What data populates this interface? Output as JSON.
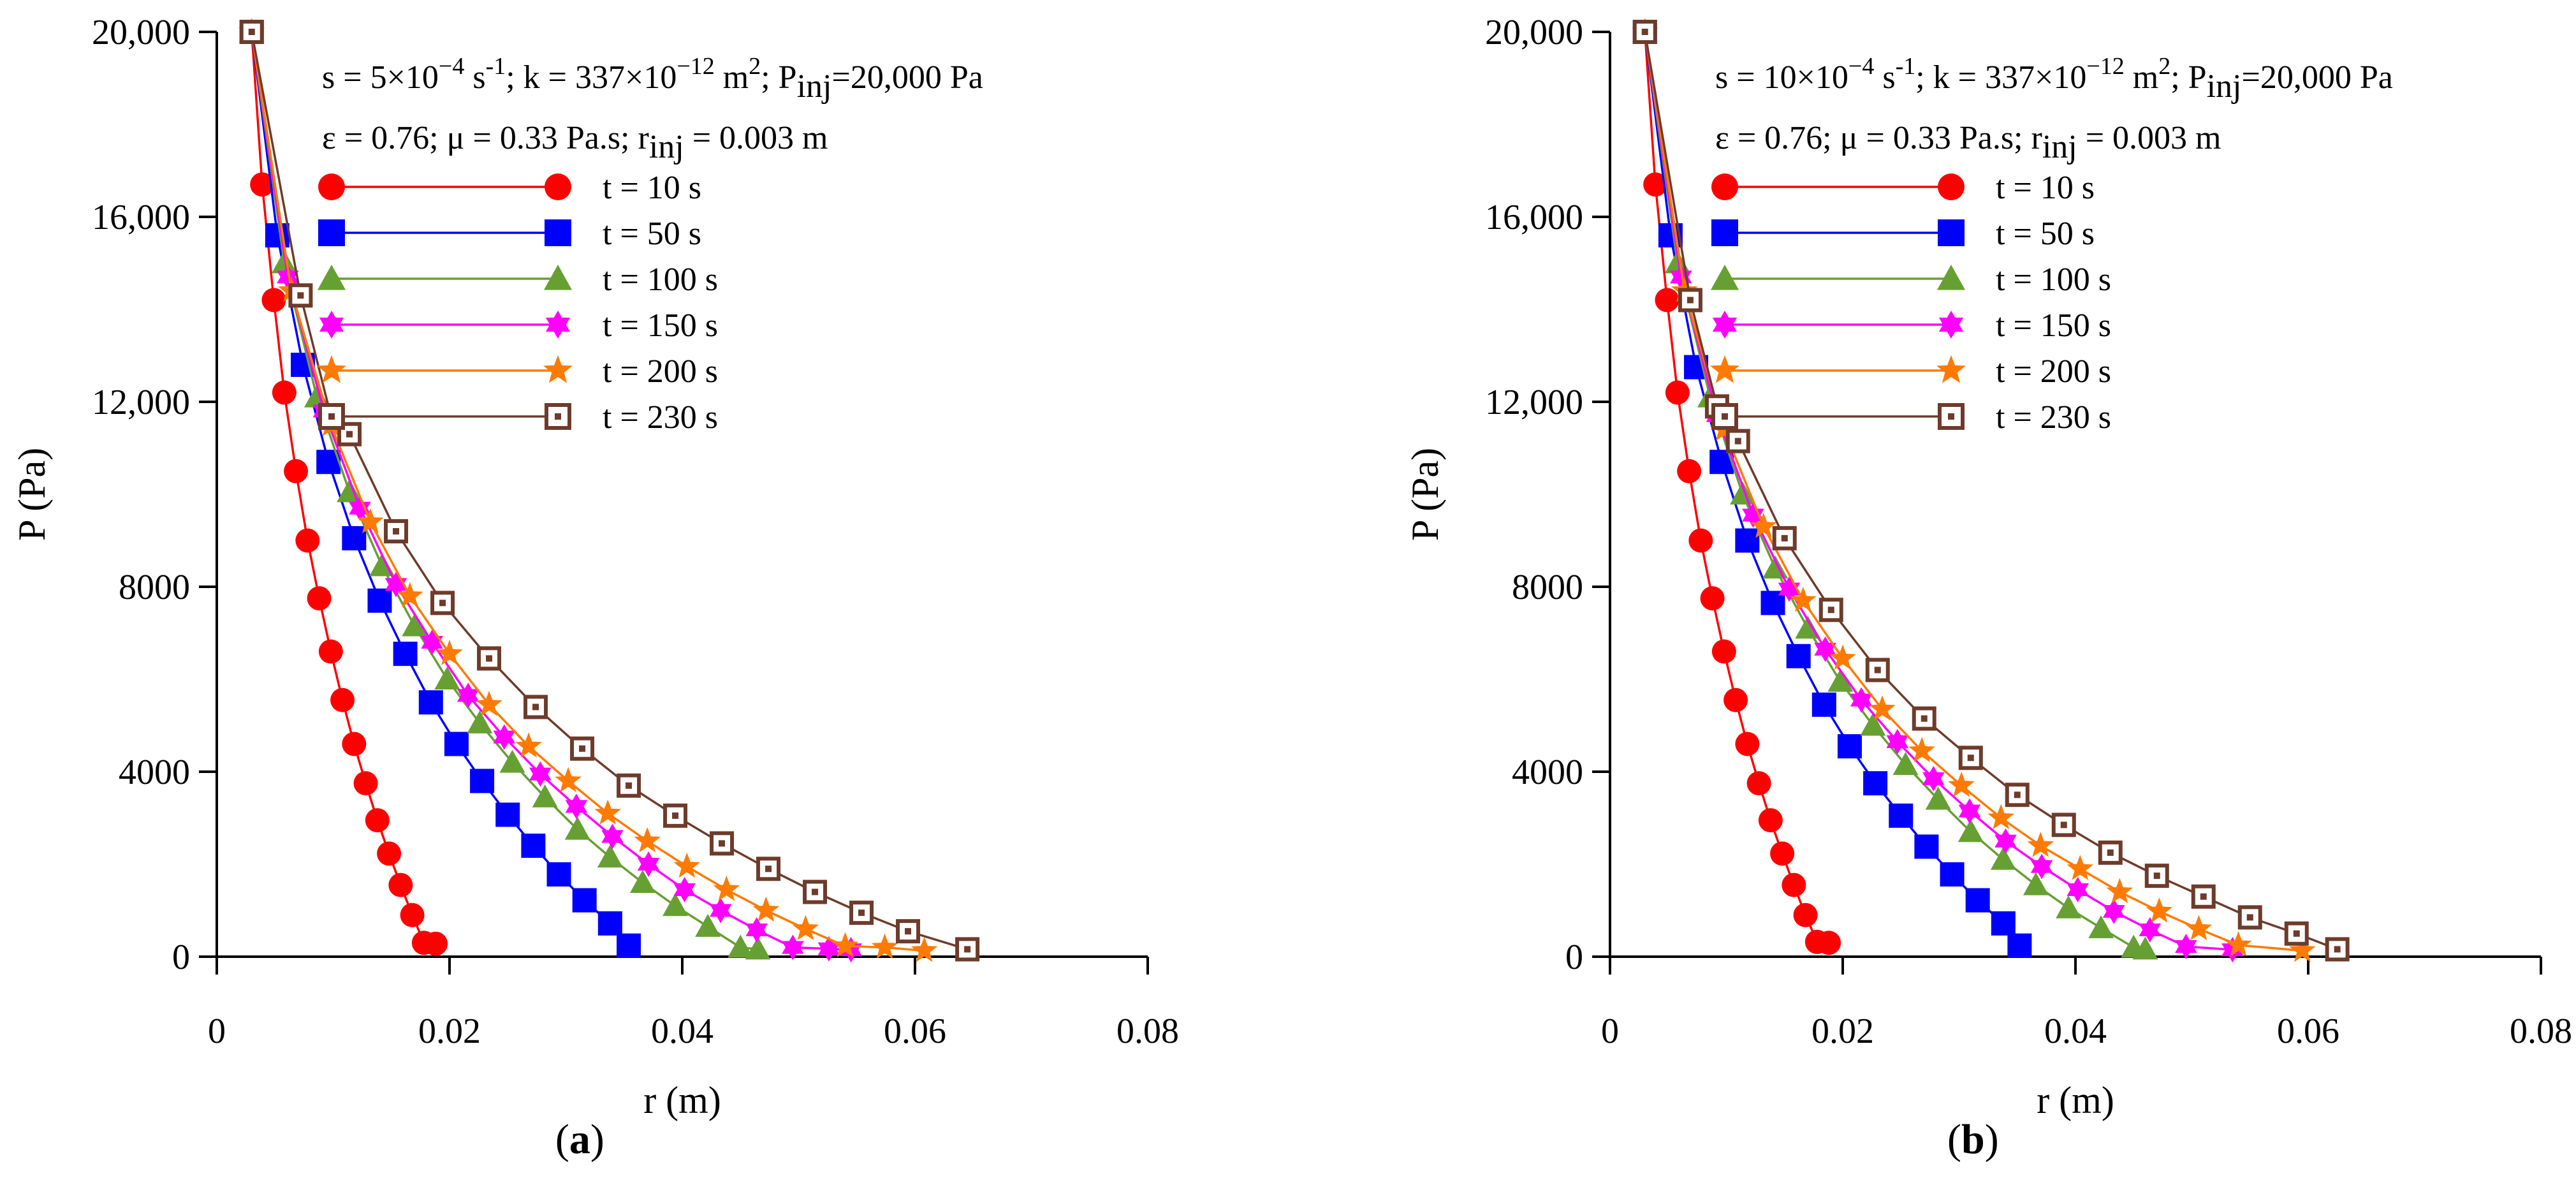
{
  "chart_data": [
    {
      "type": "line",
      "panel_label": "a",
      "xlabel": "r (m)",
      "ylabel": "P (Pa)",
      "xlim": [
        0,
        0.08
      ],
      "ylim": [
        0,
        20000
      ],
      "xticks": [
        0,
        0.02,
        0.04,
        0.06,
        0.08
      ],
      "xtick_labels": [
        "0",
        "0.02",
        "0.04",
        "0.06",
        "0.08"
      ],
      "yticks": [
        0,
        4000,
        8000,
        12000,
        16000,
        20000
      ],
      "ytick_labels": [
        "0",
        "4000",
        "8000",
        "12,000",
        "16,000",
        "20,000"
      ],
      "annotation_line1": {
        "s_label": "s = 5×10",
        "s_exp": "−4",
        "s_unit": " s",
        "s_unit_exp": "-1",
        "k_label": "; k = 337×10",
        "k_exp": "−12",
        "k_unit": " m",
        "k_unit_exp": "2",
        "p_label": "; P",
        "p_sub": "inj",
        "p_value": "=20,000 Pa"
      },
      "annotation_line2": {
        "text": "ε = 0.76; μ = 0.33 Pa.s; r",
        "sub": "inj",
        "value": " = 0.003 m"
      },
      "series": [
        {
          "name": "t = 10 s",
          "color": "#ff0000",
          "marker": "circle",
          "x": [
            0.003,
            0.0039,
            0.0049,
            0.0058,
            0.0068,
            0.0078,
            0.0088,
            0.0098,
            0.0108,
            0.0118,
            0.0128,
            0.0138,
            0.0148,
            0.0158,
            0.0168,
            0.0178,
            0.0188
          ],
          "y": [
            20000,
            16700,
            14200,
            12200,
            10500,
            9000,
            7750,
            6600,
            5550,
            4600,
            3750,
            2950,
            2230,
            1550,
            900,
            300,
            280
          ]
        },
        {
          "name": "t = 50 s",
          "color": "#0000ff",
          "marker": "square",
          "x": [
            0.003,
            0.0052,
            0.0074,
            0.0096,
            0.0118,
            0.014,
            0.0162,
            0.0184,
            0.0206,
            0.0228,
            0.025,
            0.0272,
            0.0294,
            0.0316,
            0.0338,
            0.0354
          ],
          "y": [
            20000,
            15600,
            12800,
            10700,
            9050,
            7700,
            6550,
            5500,
            4600,
            3800,
            3070,
            2400,
            1780,
            1220,
            720,
            240
          ]
        },
        {
          "name": "t = 100 s",
          "color": "#66a033",
          "marker": "triangle",
          "x": [
            0.003,
            0.0058,
            0.0086,
            0.0114,
            0.0142,
            0.017,
            0.0198,
            0.0226,
            0.0254,
            0.0282,
            0.031,
            0.0338,
            0.0366,
            0.0394,
            0.0422,
            0.045,
            0.0465
          ],
          "y": [
            20000,
            15000,
            12100,
            10050,
            8450,
            7150,
            6000,
            5050,
            4200,
            3450,
            2750,
            2150,
            1600,
            1100,
            650,
            200,
            160
          ]
        },
        {
          "name": "t = 150 s",
          "color": "#ff00ff",
          "marker": "star6",
          "x": [
            0.003,
            0.0061,
            0.0092,
            0.0123,
            0.0154,
            0.0185,
            0.0216,
            0.0247,
            0.0278,
            0.0309,
            0.034,
            0.0371,
            0.0402,
            0.0433,
            0.0464,
            0.0495,
            0.0526,
            0.0545
          ],
          "y": [
            20000,
            14700,
            11800,
            9700,
            8050,
            6800,
            5650,
            4750,
            3950,
            3250,
            2600,
            2000,
            1450,
            1000,
            580,
            200,
            170,
            150
          ]
        },
        {
          "name": "t = 200 s",
          "color": "#ff7a00",
          "marker": "star5",
          "x": [
            0.003,
            0.0064,
            0.0098,
            0.0132,
            0.0166,
            0.02,
            0.0234,
            0.0268,
            0.0302,
            0.0336,
            0.037,
            0.0404,
            0.0438,
            0.0472,
            0.0506,
            0.054,
            0.0574,
            0.0608
          ],
          "y": [
            20000,
            14400,
            11500,
            9400,
            7800,
            6550,
            5450,
            4550,
            3800,
            3100,
            2500,
            1950,
            1450,
            1000,
            600,
            230,
            200,
            130
          ]
        },
        {
          "name": "t = 230 s",
          "color": "#6e3b2a",
          "marker": "dotsquare",
          "x": [
            0.003,
            0.0072,
            0.0098,
            0.0114,
            0.0154,
            0.0194,
            0.0234,
            0.0274,
            0.0314,
            0.0354,
            0.0394,
            0.0434,
            0.0474,
            0.0514,
            0.0554,
            0.0594,
            0.0645
          ],
          "y": [
            20000,
            14300,
            11700,
            11300,
            9200,
            7650,
            6450,
            5400,
            4500,
            3700,
            3050,
            2450,
            1900,
            1400,
            950,
            550,
            160
          ]
        }
      ]
    },
    {
      "type": "line",
      "panel_label": "b",
      "xlabel": "r (m)",
      "ylabel": "P (Pa)",
      "xlim": [
        0,
        0.08
      ],
      "ylim": [
        0,
        20000
      ],
      "xticks": [
        0,
        0.02,
        0.04,
        0.06,
        0.08
      ],
      "xtick_labels": [
        "0",
        "0.02",
        "0.04",
        "0.06",
        "0.08"
      ],
      "yticks": [
        0,
        4000,
        8000,
        12000,
        16000,
        20000
      ],
      "ytick_labels": [
        "0",
        "4000",
        "8000",
        "12,000",
        "16,000",
        "20,000"
      ],
      "annotation_line1": {
        "s_label": "s = 10×10",
        "s_exp": "−4",
        "s_unit": " s",
        "s_unit_exp": "-1",
        "k_label": "; k = 337×10",
        "k_exp": "−12",
        "k_unit": " m",
        "k_unit_exp": "2",
        "p_label": "; P",
        "p_sub": "inj",
        "p_value": "=20,000 Pa"
      },
      "annotation_line2": {
        "text": "ε = 0.76; μ = 0.33 Pa.s; r",
        "sub": "inj",
        "value": " = 0.003 m"
      },
      "series": [
        {
          "name": "t = 10 s",
          "color": "#ff0000",
          "marker": "circle",
          "x": [
            0.003,
            0.0039,
            0.0049,
            0.0058,
            0.0068,
            0.0078,
            0.0088,
            0.0098,
            0.0108,
            0.0118,
            0.0128,
            0.0138,
            0.0148,
            0.0158,
            0.0168,
            0.0178,
            0.0188
          ],
          "y": [
            20000,
            16700,
            14200,
            12200,
            10500,
            9000,
            7750,
            6600,
            5550,
            4600,
            3750,
            2950,
            2230,
            1550,
            900,
            320,
            300
          ]
        },
        {
          "name": "t = 50 s",
          "color": "#0000ff",
          "marker": "square",
          "x": [
            0.003,
            0.0052,
            0.0074,
            0.0096,
            0.0118,
            0.014,
            0.0162,
            0.0184,
            0.0206,
            0.0228,
            0.025,
            0.0272,
            0.0294,
            0.0316,
            0.0338,
            0.0352
          ],
          "y": [
            20000,
            15600,
            12750,
            10700,
            9000,
            7650,
            6500,
            5450,
            4550,
            3750,
            3050,
            2380,
            1780,
            1220,
            720,
            240
          ]
        },
        {
          "name": "t = 100 s",
          "color": "#66a033",
          "marker": "triangle",
          "x": [
            0.003,
            0.0058,
            0.0086,
            0.0114,
            0.0142,
            0.017,
            0.0198,
            0.0226,
            0.0254,
            0.0282,
            0.031,
            0.0338,
            0.0366,
            0.0394,
            0.0422,
            0.045,
            0.046
          ],
          "y": [
            20000,
            15000,
            12100,
            10000,
            8400,
            7100,
            5950,
            5000,
            4150,
            3400,
            2700,
            2100,
            1550,
            1050,
            620,
            200,
            160
          ]
        },
        {
          "name": "t = 150 s",
          "color": "#ff00ff",
          "marker": "star6",
          "x": [
            0.003,
            0.0061,
            0.0092,
            0.0123,
            0.0154,
            0.0185,
            0.0216,
            0.0247,
            0.0278,
            0.0309,
            0.034,
            0.0371,
            0.0402,
            0.0433,
            0.0464,
            0.0495,
            0.0535
          ],
          "y": [
            20000,
            14700,
            11700,
            9550,
            7950,
            6650,
            5550,
            4650,
            3850,
            3150,
            2500,
            1950,
            1450,
            980,
            580,
            220,
            150
          ]
        },
        {
          "name": "t = 200 s",
          "color": "#ff7a00",
          "marker": "star5",
          "x": [
            0.003,
            0.0064,
            0.0098,
            0.0132,
            0.0166,
            0.02,
            0.0234,
            0.0268,
            0.0302,
            0.0336,
            0.037,
            0.0404,
            0.0438,
            0.0472,
            0.0506,
            0.054,
            0.0595
          ],
          "y": [
            20000,
            14400,
            11400,
            9300,
            7700,
            6450,
            5350,
            4450,
            3700,
            3000,
            2400,
            1900,
            1400,
            980,
            600,
            250,
            130
          ]
        },
        {
          "name": "t = 230 s",
          "color": "#6e3b2a",
          "marker": "dotsquare",
          "x": [
            0.003,
            0.0069,
            0.0092,
            0.011,
            0.015,
            0.019,
            0.023,
            0.027,
            0.031,
            0.035,
            0.039,
            0.043,
            0.047,
            0.051,
            0.055,
            0.059,
            0.0625
          ],
          "y": [
            20000,
            14200,
            11900,
            11150,
            9050,
            7500,
            6200,
            5150,
            4300,
            3500,
            2850,
            2250,
            1750,
            1300,
            850,
            500,
            160
          ]
        }
      ]
    }
  ]
}
